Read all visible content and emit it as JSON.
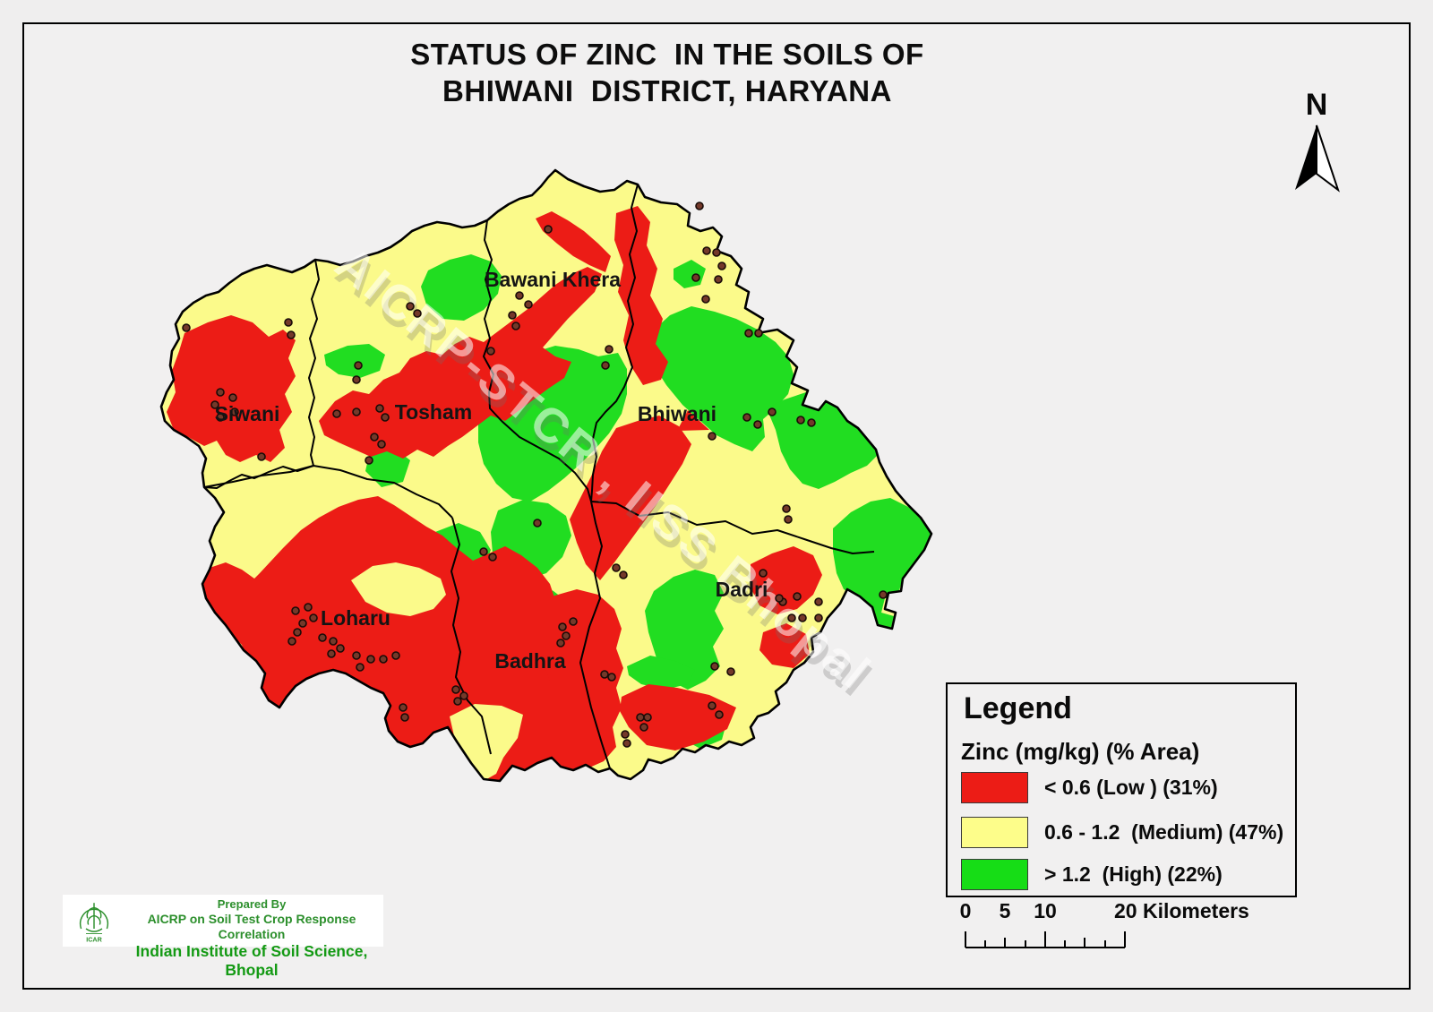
{
  "title": {
    "line1": "STATUS OF ZINC  IN THE SOILS OF",
    "line2": "BHIWANI  DISTRICT, HARYANA"
  },
  "north_arrow": {
    "label": "N"
  },
  "map": {
    "watermark": "AICRP-STCR , IISS Bhopal",
    "regions": [
      "Siwani",
      "Tosham",
      "Bawani Khera",
      "Bhiwani",
      "Loharu",
      "Badhra",
      "Dadri"
    ],
    "colors": {
      "low": "#ec1c16",
      "medium": "#fbfa8a",
      "high": "#21dd21",
      "boundary": "#000000",
      "sample_dot": "#74392a",
      "outside": "#f1f0f0"
    }
  },
  "legend": {
    "title": "Legend",
    "subtitle": "Zinc (mg/kg) (% Area)",
    "items": [
      {
        "range": "< 0.6",
        "category": "Low",
        "area_percent": 31,
        "label": "< 0.6 (Low ) (31%)",
        "color": "#ec1c16"
      },
      {
        "range": "0.6 - 1.2",
        "category": "Medium",
        "area_percent": 47,
        "label": "0.6 - 1.2  (Medium) (47%)",
        "color": "#fdfd8a"
      },
      {
        "range": "> 1.2",
        "category": "High",
        "area_percent": 22,
        "label": "> 1.2  (High) (22%)",
        "color": "#16dd16"
      }
    ]
  },
  "scale_bar": {
    "labels": [
      "0",
      "5",
      "10"
    ],
    "end_label": "20 Kilometers"
  },
  "credits": {
    "prepared_by": "Prepared By",
    "organization": "AICRP on Soil Test Crop Response Correlation",
    "institute": "Indian Institute of Soil Science, Bhopal",
    "logo_text": "ICAR"
  }
}
